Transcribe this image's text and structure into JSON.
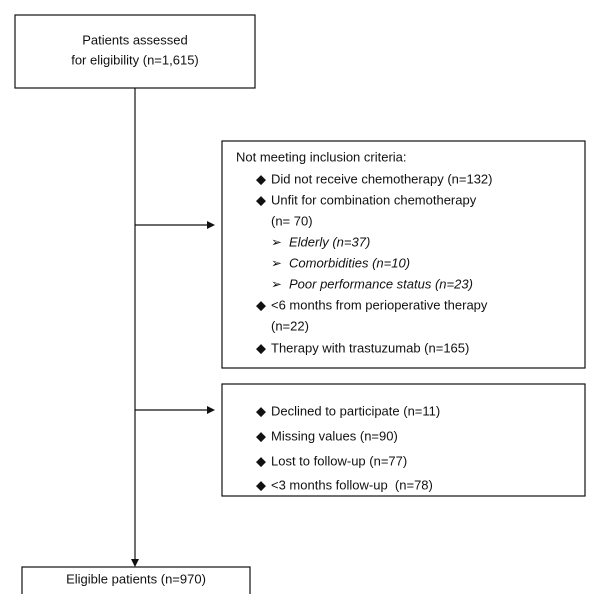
{
  "nodes": [
    {
      "lines": [
        "Patients assessed",
        "for eligibility (n=1,615)"
      ]
    },
    {
      "heading": "Not meeting inclusion criteria:",
      "items": [
        {
          "text": "Did not receive chemotherapy (n=132)"
        },
        {
          "text": "Unfit for combination chemotherapy",
          "continuation": "(n= 70)",
          "subitems": [
            "Elderly (n=37)",
            "Comorbidities (n=10)",
            "Poor performance status (n=23)"
          ]
        },
        {
          "text": "<6 months from perioperative therapy",
          "continuation": "(n=22)"
        },
        {
          "text": "Therapy with trastuzumab (n=165)"
        }
      ]
    },
    {
      "items": [
        {
          "text": "Declined to participate (n=11)"
        },
        {
          "text": "Missing values (n=90)"
        },
        {
          "text": "Lost to follow-up (n=77)"
        },
        {
          "text": "<3 months follow-up  (n=78)"
        }
      ]
    },
    {
      "lines": [
        "Eligible patients (n=970)"
      ]
    }
  ]
}
